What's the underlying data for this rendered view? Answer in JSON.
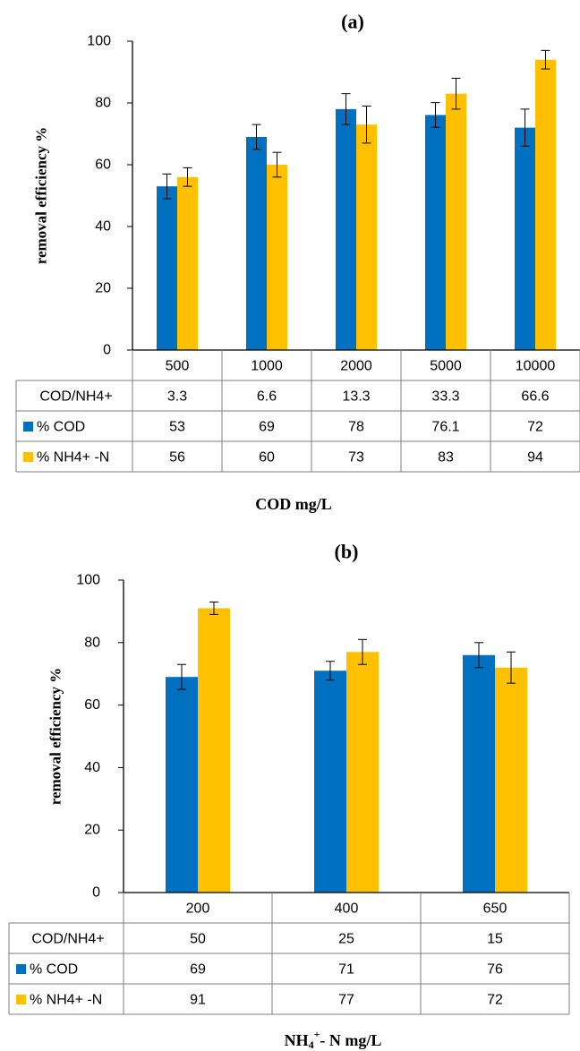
{
  "colors": {
    "cod": "#0070C0",
    "nh4": "#FFC000",
    "axis": "#000000",
    "table_border": "#7f7f7f"
  },
  "chart_data": [
    {
      "type": "bar",
      "title": "(a)",
      "ylabel": "removal  efficiency %",
      "xlabel": "COD mg/L",
      "ylim": [
        0,
        100
      ],
      "yticks": [
        "0",
        "20",
        "40",
        "60",
        "80",
        "100"
      ],
      "categories": [
        "500",
        "1000",
        "2000",
        "5000",
        "10000"
      ],
      "series": [
        {
          "name": "% COD",
          "values": [
            53,
            69,
            78,
            76.1,
            72
          ],
          "errors": [
            4,
            4,
            5,
            4,
            6
          ]
        },
        {
          "name": " % NH4+ -N",
          "values": [
            56,
            60,
            73,
            83,
            94
          ],
          "errors": [
            3,
            4,
            6,
            5,
            3
          ]
        }
      ],
      "table": [
        {
          "label": "COD/NH4+",
          "values": [
            "3.3",
            "6.6",
            "13.3",
            "33.3",
            "66.6"
          ]
        },
        {
          "label": "% COD",
          "values": [
            "53",
            "69",
            "78",
            "76.1",
            "72"
          ]
        },
        {
          "label": " % NH4+ -N",
          "values": [
            "56",
            "60",
            "73",
            "83",
            "94"
          ]
        }
      ]
    },
    {
      "type": "bar",
      "title": "(b)",
      "ylabel": "removal  efficiency %",
      "xlabel": "NH4+- N mg/L",
      "ylim": [
        0,
        100
      ],
      "yticks": [
        "0",
        "20",
        "40",
        "60",
        "80",
        "100"
      ],
      "categories": [
        "200",
        "400",
        "650"
      ],
      "series": [
        {
          "name": "% COD",
          "values": [
            69,
            71,
            76
          ],
          "errors": [
            4,
            3,
            4
          ]
        },
        {
          "name": " % NH4+ -N",
          "values": [
            91,
            77,
            72
          ],
          "errors": [
            2,
            4,
            5
          ]
        }
      ],
      "table": [
        {
          "label": "COD/NH4+",
          "values": [
            "50",
            "25",
            "15"
          ]
        },
        {
          "label": "% COD",
          "values": [
            "69",
            "71",
            "76"
          ]
        },
        {
          "label": " % NH4+ -N",
          "values": [
            "91",
            "77",
            "72"
          ]
        }
      ]
    }
  ]
}
